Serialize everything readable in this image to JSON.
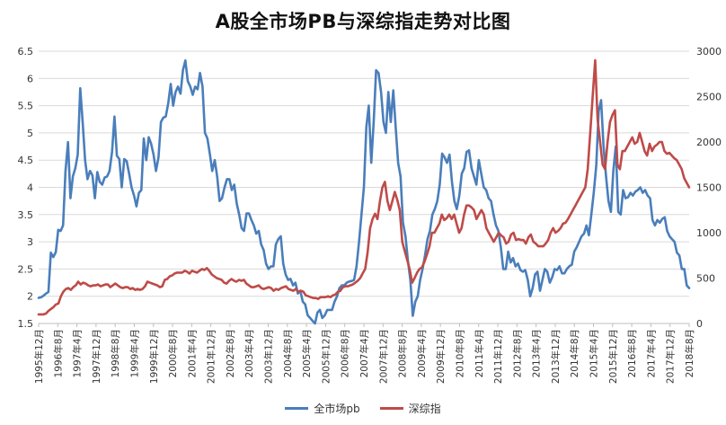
{
  "chart_data": {
    "type": "line",
    "title": "A股全市场PB与深综指走势对比图",
    "x_tick_labels": [
      "1995年12月",
      "1996年8月",
      "1997年4月",
      "1997年12月",
      "1998年8月",
      "1999年4月",
      "1999年12月",
      "2000年8月",
      "2001年4月",
      "2001年12月",
      "2002年8月",
      "2003年4月",
      "2003年12月",
      "2004年8月",
      "2005年4月",
      "2005年12月",
      "2006年8月",
      "2007年4月",
      "2007年12月",
      "2008年8月",
      "2009年4月",
      "2009年12月",
      "2010年8月",
      "2011年4月",
      "2011年12月",
      "2012年8月",
      "2013年4月",
      "2013年12月",
      "2014年8月",
      "2015年4月",
      "2015年12月",
      "2016年8月",
      "2017年4月",
      "2017年12月",
      "2018年8月"
    ],
    "y_left": {
      "ticks": [
        "1.5",
        "2",
        "2.5",
        "3",
        "3.5",
        "4",
        "4.5",
        "5",
        "5.5",
        "6",
        "6.5"
      ],
      "range": [
        1.5,
        6.5
      ]
    },
    "y_right": {
      "ticks": [
        "0",
        "500",
        "1000",
        "1500",
        "2000",
        "2500",
        "3000"
      ],
      "range": [
        0,
        3000
      ]
    },
    "grid": true,
    "legend_position": "bottom",
    "series": [
      {
        "name": "全市场pb",
        "axis": "left",
        "color": "#4A7EBB",
        "values": [
          1.97,
          1.98,
          2.01,
          2.05,
          2.08,
          2.8,
          2.72,
          2.81,
          3.22,
          3.2,
          3.3,
          4.3,
          4.83,
          3.8,
          4.2,
          4.35,
          4.6,
          5.82,
          5.2,
          4.5,
          4.15,
          4.3,
          4.22,
          3.8,
          4.28,
          4.1,
          4.05,
          4.18,
          4.2,
          4.3,
          4.65,
          5.3,
          4.58,
          4.52,
          4.0,
          4.52,
          4.48,
          4.25,
          4.0,
          3.85,
          3.65,
          3.9,
          3.95,
          4.9,
          4.5,
          4.92,
          4.8,
          4.6,
          4.3,
          4.55,
          5.2,
          5.28,
          5.3,
          5.55,
          5.9,
          5.5,
          5.75,
          5.85,
          5.72,
          6.15,
          6.33,
          5.95,
          5.85,
          5.7,
          5.85,
          5.8,
          6.1,
          5.85,
          5.0,
          4.9,
          4.62,
          4.3,
          4.5,
          4.2,
          3.75,
          3.8,
          4.0,
          4.15,
          4.15,
          3.95,
          4.05,
          3.7,
          3.5,
          3.25,
          3.2,
          3.52,
          3.52,
          3.4,
          3.3,
          3.15,
          3.2,
          2.95,
          2.85,
          2.6,
          2.5,
          2.55,
          2.55,
          2.95,
          3.05,
          3.1,
          2.6,
          2.4,
          2.3,
          2.32,
          2.2,
          2.25,
          2.05,
          2.1,
          1.9,
          1.85,
          1.65,
          1.6,
          1.55,
          1.5,
          1.7,
          1.75,
          1.6,
          1.65,
          1.75,
          1.75,
          1.75,
          1.9,
          2.0,
          2.15,
          2.2,
          2.2,
          2.25,
          2.27,
          2.28,
          2.3,
          2.55,
          3.0,
          3.5,
          4.0,
          5.1,
          5.5,
          4.45,
          5.2,
          6.15,
          6.1,
          5.75,
          5.2,
          5.0,
          5.75,
          5.2,
          5.78,
          5.1,
          4.45,
          4.2,
          3.35,
          3.1,
          2.65,
          2.3,
          1.64,
          1.9,
          2.0,
          2.3,
          2.5,
          2.75,
          3.05,
          3.2,
          3.5,
          3.6,
          3.75,
          4.05,
          4.62,
          4.55,
          4.45,
          4.6,
          4.1,
          3.75,
          3.6,
          3.85,
          4.25,
          4.35,
          4.65,
          4.68,
          4.35,
          4.2,
          4.05,
          4.5,
          4.25,
          4.0,
          3.95,
          3.8,
          3.75,
          3.5,
          3.3,
          3.2,
          2.9,
          2.5,
          2.5,
          2.82,
          2.62,
          2.7,
          2.55,
          2.6,
          2.48,
          2.45,
          2.48,
          2.3,
          2.0,
          2.15,
          2.4,
          2.45,
          2.1,
          2.3,
          2.5,
          2.45,
          2.25,
          2.35,
          2.5,
          2.48,
          2.55,
          2.42,
          2.42,
          2.5,
          2.55,
          2.58,
          2.82,
          2.9,
          3.0,
          3.1,
          3.15,
          3.3,
          3.12,
          3.5,
          3.9,
          4.4,
          5.4,
          5.6,
          4.75,
          4.2,
          3.75,
          3.55,
          4.3,
          4.75,
          3.55,
          3.5,
          3.95,
          3.8,
          3.82,
          3.9,
          3.85,
          3.92,
          3.95,
          4.0,
          3.9,
          3.95,
          3.85,
          3.8,
          3.4,
          3.3,
          3.4,
          3.35,
          3.42,
          3.45,
          3.2,
          3.1,
          3.05,
          3.0,
          2.8,
          2.75,
          2.5,
          2.5,
          2.2,
          2.15
        ]
      },
      {
        "name": "深综指",
        "axis": "right",
        "color": "#BE4B48",
        "values": [
          100,
          100,
          100,
          110,
          140,
          160,
          180,
          210,
          220,
          300,
          350,
          380,
          390,
          370,
          400,
          420,
          460,
          430,
          450,
          440,
          420,
          410,
          420,
          420,
          430,
          410,
          420,
          430,
          430,
          400,
          420,
          440,
          420,
          400,
          390,
          400,
          400,
          380,
          390,
          370,
          380,
          370,
          380,
          410,
          460,
          450,
          440,
          430,
          420,
          400,
          410,
          480,
          490,
          520,
          530,
          550,
          560,
          560,
          560,
          580,
          570,
          550,
          580,
          570,
          560,
          580,
          600,
          590,
          610,
          580,
          540,
          520,
          500,
          490,
          480,
          450,
          440,
          470,
          490,
          470,
          460,
          480,
          470,
          480,
          440,
          420,
          400,
          400,
          410,
          420,
          390,
          380,
          390,
          400,
          390,
          360,
          380,
          370,
          390,
          400,
          410,
          380,
          370,
          360,
          380,
          350,
          360,
          350,
          310,
          300,
          290,
          280,
          280,
          270,
          290,
          290,
          290,
          300,
          290,
          310,
          320,
          350,
          360,
          400,
          410,
          410,
          420,
          430,
          450,
          470,
          500,
          550,
          600,
          780,
          1050,
          1150,
          1210,
          1150,
          1350,
          1500,
          1560,
          1350,
          1250,
          1350,
          1450,
          1360,
          1250,
          900,
          800,
          700,
          600,
          450,
          500,
          560,
          600,
          620,
          680,
          760,
          850,
          1000,
          1000,
          1050,
          1100,
          1200,
          1140,
          1160,
          1200,
          1150,
          1200,
          1100,
          1000,
          1050,
          1200,
          1300,
          1300,
          1280,
          1250,
          1150,
          1200,
          1250,
          1200,
          1050,
          1000,
          950,
          900,
          950,
          1000,
          970,
          950,
          880,
          900,
          980,
          1000,
          920,
          930,
          920,
          920,
          880,
          950,
          980,
          900,
          880,
          850,
          850,
          850,
          880,
          920,
          1000,
          1050,
          1000,
          1020,
          1050,
          1100,
          1110,
          1150,
          1200,
          1250,
          1300,
          1350,
          1400,
          1450,
          1500,
          1700,
          2100,
          2500,
          2900,
          2250,
          2000,
          1750,
          1700,
          2000,
          2220,
          2300,
          2350,
          1750,
          1700,
          1900,
          1900,
          1950,
          2000,
          2050,
          1980,
          2000,
          2100,
          2000,
          1900,
          1850,
          1980,
          1900,
          1950,
          1970,
          2000,
          2000,
          1900,
          1870,
          1880,
          1850,
          1820,
          1800,
          1750,
          1700,
          1600,
          1550,
          1500
        ]
      }
    ]
  }
}
